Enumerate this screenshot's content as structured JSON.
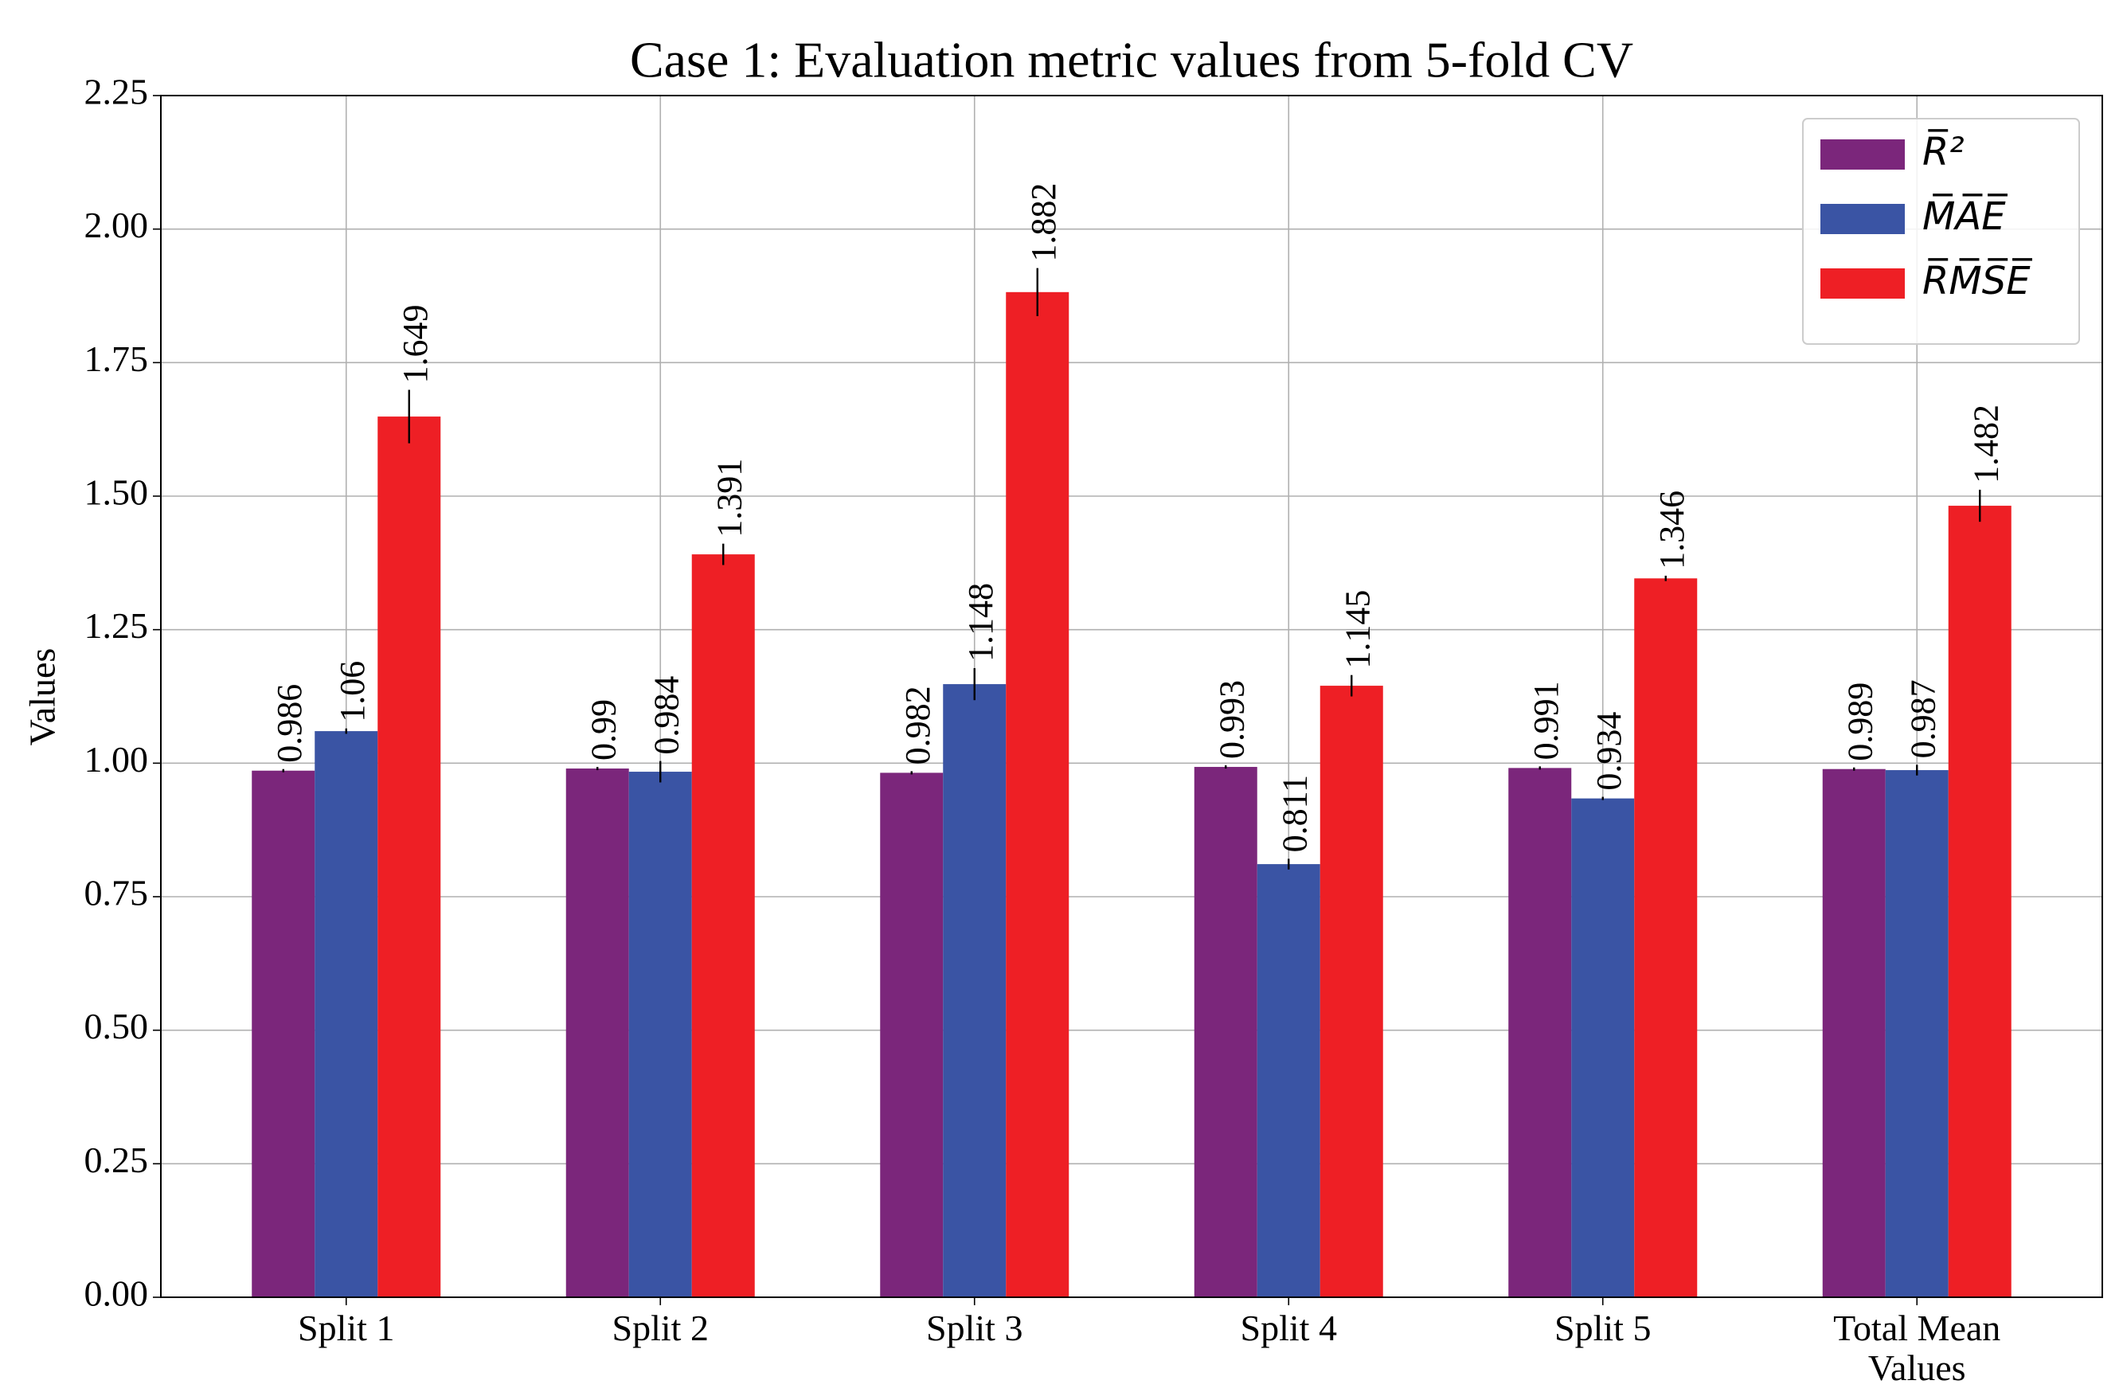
{
  "chart_data": {
    "type": "bar",
    "title": "Case 1: Evaluation metric values from 5-fold CV",
    "y_label": "Values",
    "categories": [
      "Split 1",
      "Split 2",
      "Split 3",
      "Split 4",
      "Split 5",
      "Total Mean Values"
    ],
    "series": [
      {
        "name": "R̅²",
        "color": "#7b267b",
        "values": [
          0.986,
          0.99,
          0.982,
          0.993,
          0.991,
          0.989
        ],
        "errors": [
          0.003,
          0.003,
          0.003,
          0.003,
          0.003,
          0.003
        ]
      },
      {
        "name": "M̅A̅E̅",
        "color": "#3a54a4",
        "values": [
          1.06,
          0.984,
          1.148,
          0.811,
          0.934,
          0.987
        ],
        "errors": [
          0.005,
          0.02,
          0.03,
          0.01,
          0.003,
          0.01
        ]
      },
      {
        "name": "R̅M̅S̅E̅",
        "color": "#ee1f25",
        "values": [
          1.649,
          1.391,
          1.882,
          1.145,
          1.346,
          1.482
        ],
        "errors": [
          0.05,
          0.02,
          0.045,
          0.02,
          0.005,
          0.03
        ]
      }
    ],
    "ylim": [
      0,
      2.25
    ],
    "yticks": [
      {
        "value": 0,
        "label": "0.00"
      },
      0.25,
      {
        "value": 0.5,
        "label": "0.50"
      },
      0.75,
      {
        "value": 1,
        "label": "1.00"
      },
      1.25,
      {
        "value": 1.5,
        "label": "1.50"
      },
      1.75,
      {
        "value": 2,
        "label": "2.00"
      },
      2.25
    ],
    "grid": true,
    "legend": "upper right"
  }
}
